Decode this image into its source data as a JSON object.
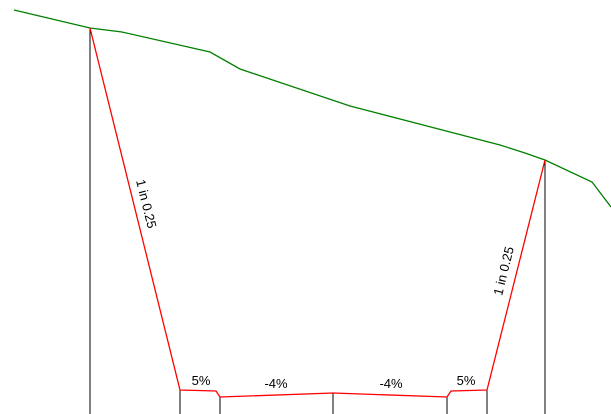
{
  "colors": {
    "ground": "#008000",
    "excavation": "#ff0000",
    "reference": "#000000",
    "text": "#000000"
  },
  "labels": {
    "left_batter": "1 in 0.25",
    "right_batter": "1 in 0.25",
    "left_shoulder": "5%",
    "left_carriageway": "-4%",
    "right_carriageway": "-4%",
    "right_shoulder": "5%"
  }
}
